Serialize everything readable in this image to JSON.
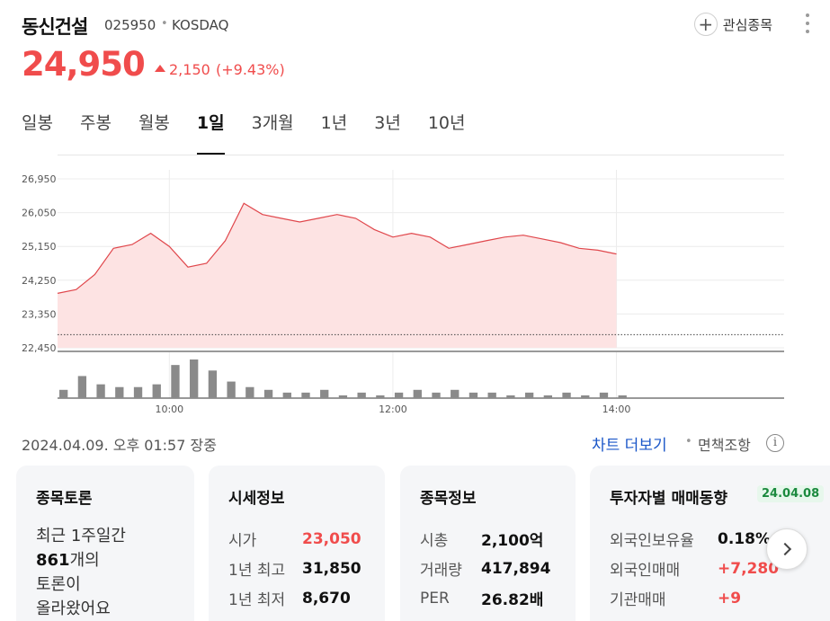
{
  "header": {
    "name": "동신건설",
    "code": "025950",
    "separator": "•",
    "market": "KOSDAQ",
    "watch_label": "관심종목",
    "plus_glyph": "+"
  },
  "price": {
    "current": "24,950",
    "change": "2,150",
    "change_pct": "(+9.43%)",
    "direction": "up",
    "color_up": "#f04c4c"
  },
  "tabs": [
    {
      "label": "일봉",
      "active": false
    },
    {
      "label": "주봉",
      "active": false
    },
    {
      "label": "월봉",
      "active": false
    },
    {
      "label": "1일",
      "active": true
    },
    {
      "label": "3개월",
      "active": false
    },
    {
      "label": "1년",
      "active": false
    },
    {
      "label": "3년",
      "active": false
    },
    {
      "label": "10년",
      "active": false
    }
  ],
  "chart_data": {
    "type": "area",
    "y_ticks": [
      "26,950",
      "26,050",
      "25,150",
      "24,250",
      "23,350",
      "22,450"
    ],
    "ylim": [
      22450,
      26950
    ],
    "x_ticks": [
      "10:00",
      "12:00",
      "14:00"
    ],
    "xlim": [
      "09:00",
      "15:30"
    ],
    "prev_close": 22800,
    "line_color": "#e0474c",
    "fill_color": "#fde3e3",
    "x": [
      "09:00",
      "09:10",
      "09:20",
      "09:30",
      "09:40",
      "09:50",
      "10:00",
      "10:10",
      "10:20",
      "10:30",
      "10:40",
      "10:50",
      "11:00",
      "11:10",
      "11:20",
      "11:30",
      "11:40",
      "11:50",
      "12:00",
      "12:10",
      "12:20",
      "12:30",
      "12:40",
      "12:50",
      "13:00",
      "13:10",
      "13:20",
      "13:30",
      "13:40",
      "13:50",
      "14:00"
    ],
    "values": [
      23900,
      24000,
      24400,
      25100,
      25200,
      25500,
      25150,
      24600,
      24700,
      25300,
      26300,
      26000,
      25900,
      25800,
      25900,
      26000,
      25900,
      25600,
      25400,
      25500,
      25400,
      25100,
      25200,
      25300,
      25400,
      25450,
      25350,
      25250,
      25100,
      25050,
      24950
    ],
    "volume": [
      3,
      8,
      5,
      4,
      4,
      5,
      12,
      14,
      10,
      6,
      4,
      3,
      2,
      2,
      3,
      1,
      2,
      1,
      2,
      3,
      2,
      3,
      2,
      2,
      1,
      2,
      1,
      2,
      1,
      2,
      1
    ],
    "volume_color": "#8a8a8a"
  },
  "footer": {
    "timestamp": "2024.04.09. 오후 01:57 장중",
    "chart_more": "차트 더보기",
    "separator": "•",
    "disclaimer": "면책조항",
    "info_glyph": "i"
  },
  "cards": {
    "discussion": {
      "title": "종목토론",
      "line1": "최근 1주일간",
      "count": "861",
      "count_suffix": "개의",
      "line3": "토론이",
      "line4": "올라왔어요"
    },
    "market_info": {
      "title": "시세정보",
      "rows": [
        {
          "k": "시가",
          "v": "23,050",
          "up": true
        },
        {
          "k": "1년 최고",
          "v": "31,850",
          "up": false
        },
        {
          "k": "1년 최저",
          "v": "8,670",
          "up": false
        }
      ]
    },
    "stock_info": {
      "title": "종목정보",
      "rows": [
        {
          "k": "시총",
          "v": "2,100억"
        },
        {
          "k": "거래량",
          "v": "417,894"
        },
        {
          "k": "PER",
          "v": "26.82배"
        }
      ]
    },
    "investor": {
      "title": "투자자별 매매동향",
      "date": "24.04.08",
      "rows": [
        {
          "k": "외국인보유율",
          "v": "0.18%",
          "up": false
        },
        {
          "k": "외국인매매",
          "v": "+7,280",
          "up": true
        },
        {
          "k": "기관매매",
          "v": "+9",
          "up": true
        }
      ]
    }
  }
}
